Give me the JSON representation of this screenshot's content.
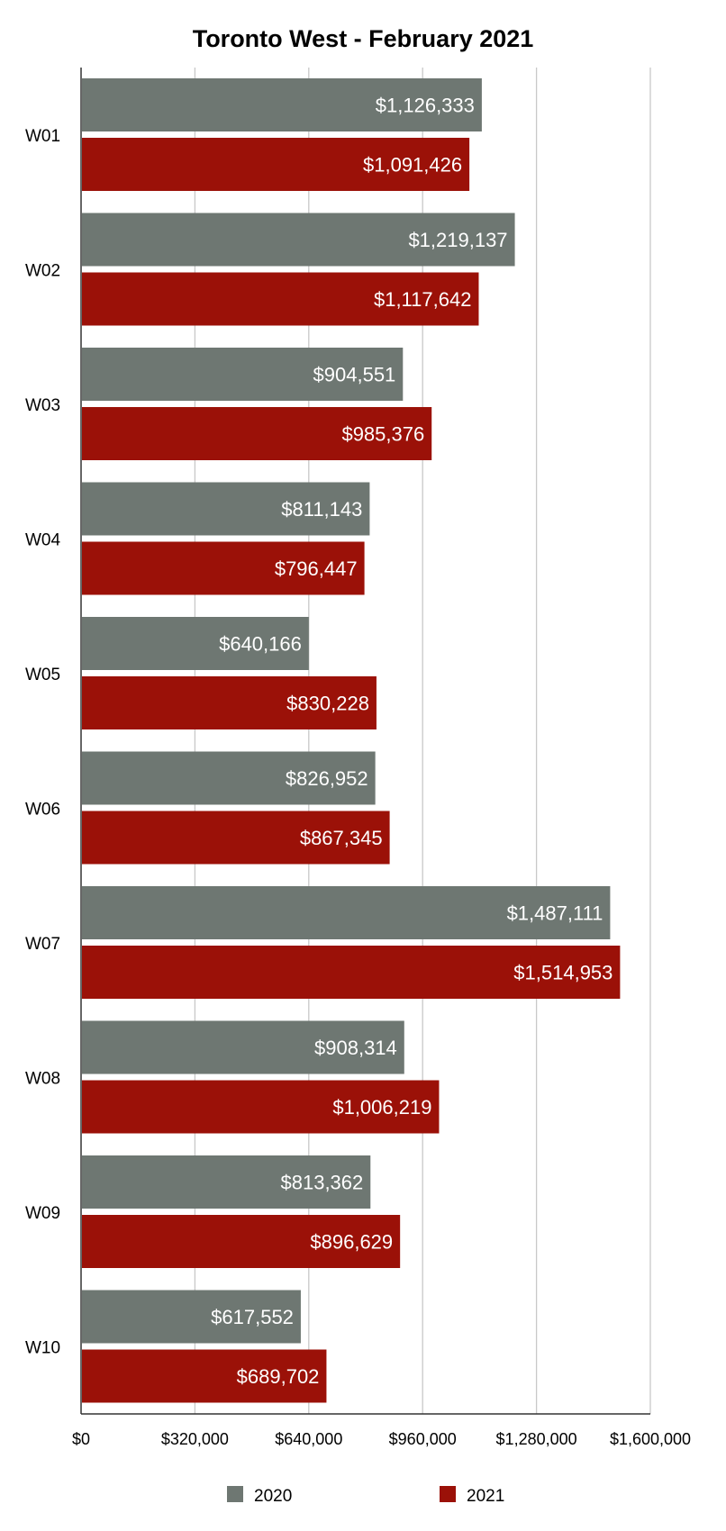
{
  "chart_data": {
    "type": "bar",
    "orientation": "horizontal",
    "title": "Toronto West - February 2021",
    "xlabel": "",
    "ylabel": "",
    "categories": [
      "W01",
      "W02",
      "W03",
      "W04",
      "W05",
      "W06",
      "W07",
      "W08",
      "W09",
      "W10"
    ],
    "series": [
      {
        "name": "2020",
        "color": "#6e7772",
        "values": [
          1126333,
          1219137,
          904551,
          811143,
          640166,
          826952,
          1487111,
          908314,
          813362,
          617552
        ],
        "labels": [
          "$1,126,333",
          "$1,219,137",
          "$904,551",
          "$811,143",
          "$640,166",
          "$826,952",
          "$1,487,111",
          "$908,314",
          "$813,362",
          "$617,552"
        ]
      },
      {
        "name": "2021",
        "color": "#9b1108",
        "values": [
          1091426,
          1117642,
          985376,
          796447,
          830228,
          867345,
          1514953,
          1006219,
          896629,
          689702
        ],
        "labels": [
          "$1,091,426",
          "$1,117,642",
          "$985,376",
          "$796,447",
          "$830,228",
          "$867,345",
          "$1,514,953",
          "$1,006,219",
          "$896,629",
          "$689,702"
        ]
      }
    ],
    "xlim": [
      0,
      1600000
    ],
    "ticks": [
      {
        "value": 0,
        "label": "$0"
      },
      {
        "value": 320000,
        "label": "$320,000"
      },
      {
        "value": 640000,
        "label": "$640,000"
      },
      {
        "value": 960000,
        "label": "$960,000"
      },
      {
        "value": 1280000,
        "label": "$1,280,000"
      },
      {
        "value": 1600000,
        "label": "$1,600,000"
      }
    ],
    "grid": true,
    "legend_position": "bottom",
    "gridline_color": "#c8c8c8",
    "axis_color": "#333333",
    "label_color": "#ffffff"
  }
}
